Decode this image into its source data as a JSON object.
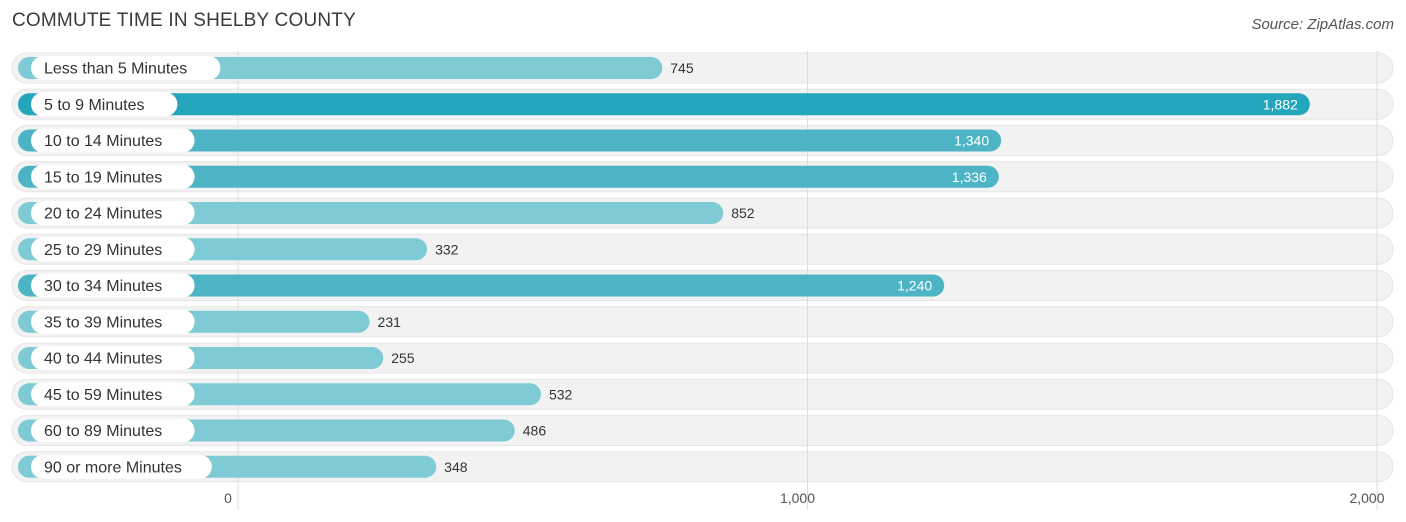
{
  "header": {
    "title": "COMMUTE TIME IN SHELBY COUNTY",
    "source": "Source: ZipAtlas.com"
  },
  "colors": {
    "bar_strong": "#23a5bb",
    "bar_medium": "#4db4c6",
    "bar_light": "#7ecbd6",
    "track": "#f2f2f2",
    "grid": "#dddddd"
  },
  "chart_data": {
    "type": "bar",
    "orientation": "horizontal",
    "categories": [
      "Less than 5 Minutes",
      "5 to 9 Minutes",
      "10 to 14 Minutes",
      "15 to 19 Minutes",
      "20 to 24 Minutes",
      "25 to 29 Minutes",
      "30 to 34 Minutes",
      "35 to 39 Minutes",
      "40 to 44 Minutes",
      "45 to 59 Minutes",
      "60 to 89 Minutes",
      "90 or more Minutes"
    ],
    "values": [
      745,
      1882,
      1340,
      1336,
      852,
      332,
      1240,
      231,
      255,
      532,
      486,
      348
    ],
    "value_labels": [
      "745",
      "1,882",
      "1,340",
      "1,336",
      "852",
      "332",
      "1,240",
      "231",
      "255",
      "532",
      "486",
      "348"
    ],
    "xlim": [
      0,
      2000
    ],
    "xticks": [
      0,
      1000,
      2000
    ],
    "xtick_labels": [
      "0",
      "1,000",
      "2,000"
    ],
    "grid": true,
    "legend": "none"
  }
}
